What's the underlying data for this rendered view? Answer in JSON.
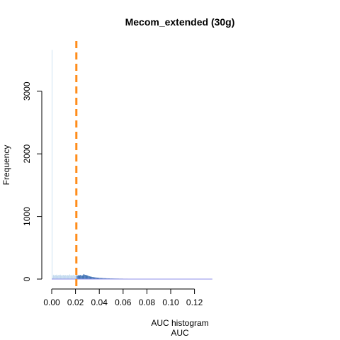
{
  "chart_data": {
    "type": "bar",
    "title": "Mecom_extended (30g)",
    "xlabel": "AUC",
    "subtitle": "AUC histogram",
    "ylabel": "Frequency",
    "x_range": [
      0.0,
      0.13
    ],
    "ylim": [
      0,
      3800
    ],
    "x_ticks": [
      "0.00",
      "0.02",
      "0.04",
      "0.06",
      "0.08",
      "0.10",
      "0.12"
    ],
    "x_tick_values": [
      0.0,
      0.02,
      0.04,
      0.06,
      0.08,
      0.1,
      0.12
    ],
    "y_ticks": [
      "0",
      "1000",
      "2000",
      "3000"
    ],
    "y_tick_values": [
      0,
      1000,
      2000,
      3000
    ],
    "threshold": 0.0207,
    "bin_width": 0.0005,
    "bin_start": 0.0,
    "counts": [
      3660,
      20,
      60,
      70,
      55,
      60,
      65,
      60,
      72,
      58,
      55,
      64,
      66,
      60,
      72,
      58,
      60,
      56,
      62,
      68,
      56,
      62,
      60,
      64,
      60,
      55,
      66,
      58,
      60,
      62,
      75,
      60,
      58,
      62,
      60,
      58,
      70,
      60,
      58,
      60,
      55,
      58,
      60,
      55,
      62,
      60,
      58,
      62,
      65,
      60,
      55,
      58,
      60,
      80,
      70,
      72,
      68,
      65,
      62,
      60,
      56,
      52,
      48,
      45,
      42,
      40,
      38,
      36,
      34,
      32,
      30,
      28,
      27,
      26,
      25,
      24,
      23,
      22,
      21,
      20,
      19,
      18,
      18,
      17,
      16,
      16,
      15,
      15,
      14,
      14,
      13,
      13,
      12,
      12,
      12,
      11,
      11,
      11,
      10,
      10,
      10,
      10,
      9,
      9,
      9,
      9,
      9,
      8,
      8,
      8,
      8,
      8,
      8,
      7,
      7,
      7,
      7,
      7,
      7,
      7,
      6,
      6,
      6,
      6,
      6,
      6,
      6,
      6,
      5,
      5,
      5,
      5,
      5,
      5,
      5,
      5,
      5,
      5,
      4,
      4,
      4,
      4,
      4,
      4,
      4,
      4,
      4,
      4,
      4,
      4,
      3,
      3,
      3,
      3,
      3,
      3,
      3,
      3,
      3,
      3,
      3,
      3,
      3,
      3,
      3,
      3,
      3,
      3,
      3,
      3,
      2,
      2,
      2,
      2,
      2,
      2,
      2,
      2,
      2,
      2,
      2,
      2,
      2,
      2,
      2,
      2,
      2,
      2,
      2,
      2,
      2,
      2,
      2,
      2,
      2,
      2,
      2,
      2,
      2,
      2,
      2,
      2,
      2,
      2,
      2,
      2,
      2,
      2,
      2,
      2,
      1,
      1,
      1,
      1,
      1,
      1,
      1,
      1,
      1,
      1,
      1,
      1,
      1,
      1,
      1,
      1,
      1,
      1,
      1,
      1,
      1,
      1,
      1,
      1,
      1,
      1,
      1,
      1,
      1,
      1,
      1,
      1,
      1,
      1,
      1,
      1,
      1,
      1,
      1,
      1,
      1,
      1,
      1,
      1,
      1,
      1,
      1,
      1,
      1,
      1,
      1,
      1,
      1,
      1,
      1,
      1,
      1,
      1,
      1,
      1
    ],
    "colors": {
      "below_threshold": "#b8d4ec",
      "above_threshold": "#1f5aa8",
      "threshold_line": "#ff8c1a",
      "baseline": "#8f8fe8"
    }
  }
}
